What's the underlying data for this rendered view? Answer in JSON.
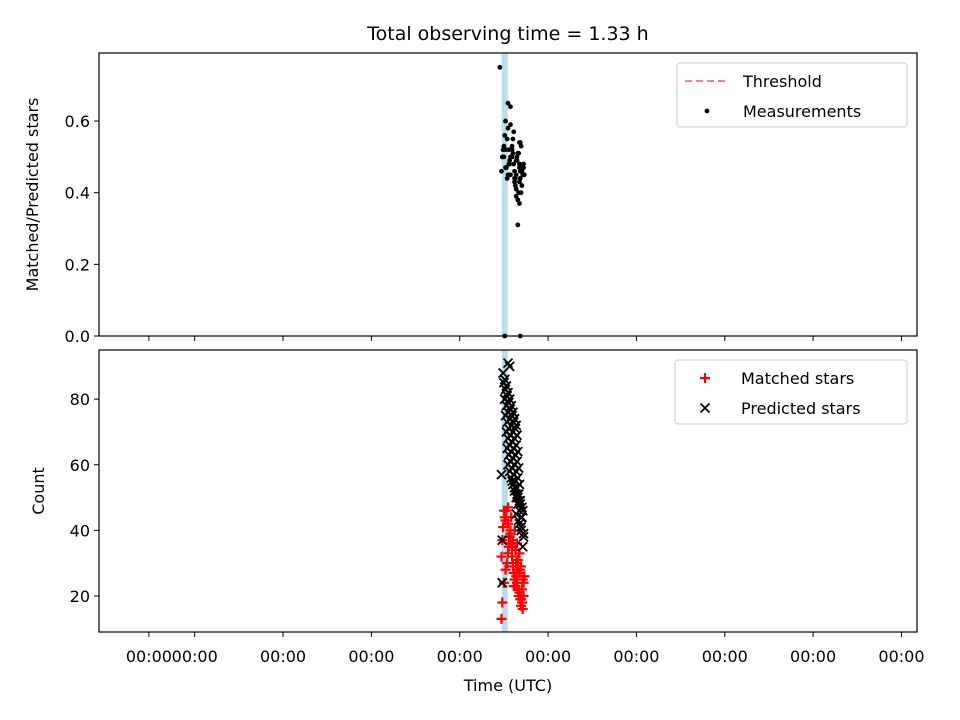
{
  "figure": {
    "title": "Total observing time = 1.33 h",
    "xlabel": "Time (UTC)"
  },
  "chart_data": [
    {
      "type": "scatter",
      "panel": "top",
      "ylabel": "Matched/Predicted stars",
      "xlim": [
        0,
        1
      ],
      "ylim": [
        0,
        0.79
      ],
      "yticks": [
        0.0,
        0.2,
        0.4,
        0.6
      ],
      "ytick_labels": [
        "0.0",
        "0.2",
        "0.4",
        "0.6"
      ],
      "xticks": [
        0.061,
        0.117,
        0.225,
        0.333,
        0.441,
        0.549,
        0.657,
        0.765,
        0.873,
        0.981
      ],
      "xtick_labels": [
        "00:00",
        "00:00",
        "00:00",
        "00:00",
        "00:00",
        "00:00",
        "00:00",
        "00:00",
        "00:00",
        "00:00"
      ],
      "show_xtick_labels": false,
      "grid": false,
      "legend": "top-right",
      "threshold_band": {
        "x": 0.496,
        "color": "#add8e6"
      },
      "series": [
        {
          "name": "Threshold",
          "kind": "dashed-line",
          "color": "#ff7f7f",
          "x": [],
          "y": []
        },
        {
          "name": "Measurements",
          "kind": "dot",
          "color": "#000000",
          "x": [
            0.492,
            0.495,
            0.497,
            0.499,
            0.501,
            0.503,
            0.505,
            0.507,
            0.509,
            0.511,
            0.513,
            0.515,
            0.517,
            0.519,
            0.494,
            0.497,
            0.5,
            0.503,
            0.506,
            0.508,
            0.51,
            0.512,
            0.514,
            0.516,
            0.518,
            0.496,
            0.499,
            0.502,
            0.505,
            0.508,
            0.511,
            0.514,
            0.517,
            0.493,
            0.498,
            0.502,
            0.506,
            0.51,
            0.514,
            0.518,
            0.495,
            0.5,
            0.505,
            0.51,
            0.515,
            0.497,
            0.503,
            0.509,
            0.515,
            0.52,
            0.501,
            0.507,
            0.513,
            0.519,
            0.512,
            0.516,
            0.51,
            0.514,
            0.508,
            0.512,
            0.514,
            0.5,
            0.503,
            0.49,
            0.496,
            0.515
          ],
          "y": [
            0.46,
            0.5,
            0.52,
            0.55,
            0.48,
            0.45,
            0.53,
            0.57,
            0.44,
            0.49,
            0.51,
            0.54,
            0.46,
            0.48,
            0.52,
            0.47,
            0.45,
            0.5,
            0.55,
            0.43,
            0.49,
            0.51,
            0.47,
            0.53,
            0.45,
            0.56,
            0.44,
            0.48,
            0.52,
            0.46,
            0.5,
            0.54,
            0.42,
            0.5,
            0.47,
            0.49,
            0.51,
            0.45,
            0.48,
            0.47,
            0.53,
            0.58,
            0.5,
            0.41,
            0.46,
            0.6,
            0.59,
            0.42,
            0.44,
            0.45,
            0.52,
            0.48,
            0.4,
            0.47,
            0.38,
            0.4,
            0.39,
            0.37,
            0.44,
            0.31,
            0.43,
            0.65,
            0.64,
            0.75,
            0.0,
            0.0
          ]
        }
      ]
    },
    {
      "type": "scatter",
      "panel": "bottom",
      "ylabel": "Count",
      "xlim": [
        0,
        1
      ],
      "ylim": [
        9,
        95
      ],
      "yticks": [
        20,
        40,
        60,
        80
      ],
      "ytick_labels": [
        "20",
        "40",
        "60",
        "80"
      ],
      "xticks": [
        0.061,
        0.117,
        0.225,
        0.333,
        0.441,
        0.549,
        0.657,
        0.765,
        0.873,
        0.981
      ],
      "xtick_labels": [
        "00:00",
        "00:00",
        "00:00",
        "00:00",
        "00:00",
        "00:00",
        "00:00",
        "00:00",
        "00:00",
        "00:00"
      ],
      "show_xtick_labels": true,
      "grid": false,
      "legend": "top-right",
      "threshold_band": {
        "x": 0.496,
        "color": "#add8e6"
      },
      "series": [
        {
          "name": "Matched stars",
          "kind": "plus",
          "color": "#ff0000",
          "x": [
            0.492,
            0.493,
            0.495,
            0.497,
            0.499,
            0.5,
            0.501,
            0.502,
            0.503,
            0.504,
            0.505,
            0.506,
            0.507,
            0.508,
            0.509,
            0.51,
            0.511,
            0.512,
            0.513,
            0.514,
            0.515,
            0.516,
            0.517,
            0.518,
            0.519,
            0.52,
            0.496,
            0.498,
            0.5,
            0.503,
            0.506,
            0.509,
            0.512,
            0.515,
            0.518,
            0.494,
            0.497,
            0.501,
            0.505,
            0.51,
            0.514,
            0.517,
            0.495,
            0.5,
            0.504,
            0.508,
            0.511,
            0.514,
            0.516,
            0.519,
            0.493,
            0.492,
            0.512,
            0.516,
            0.507,
            0.511
          ],
          "y": [
            13,
            18,
            24,
            28,
            30,
            33,
            35,
            38,
            40,
            36,
            32,
            29,
            27,
            25,
            23,
            26,
            24,
            22,
            20,
            21,
            19,
            17,
            18,
            16,
            20,
            26,
            44,
            46,
            42,
            39,
            37,
            34,
            31,
            28,
            25,
            41,
            43,
            38,
            35,
            30,
            27,
            22,
            46,
            47,
            44,
            40,
            36,
            33,
            29,
            24,
            37,
            32,
            29,
            19,
            23,
            28
          ]
        },
        {
          "name": "Predicted stars",
          "kind": "x",
          "color": "#000000",
          "x": [
            0.494,
            0.496,
            0.498,
            0.5,
            0.502,
            0.504,
            0.506,
            0.508,
            0.51,
            0.495,
            0.497,
            0.499,
            0.501,
            0.503,
            0.505,
            0.507,
            0.509,
            0.511,
            0.496,
            0.498,
            0.5,
            0.502,
            0.504,
            0.506,
            0.508,
            0.51,
            0.512,
            0.497,
            0.499,
            0.501,
            0.503,
            0.505,
            0.507,
            0.509,
            0.511,
            0.513,
            0.498,
            0.5,
            0.502,
            0.504,
            0.506,
            0.508,
            0.51,
            0.512,
            0.514,
            0.499,
            0.501,
            0.503,
            0.505,
            0.507,
            0.509,
            0.511,
            0.513,
            0.515,
            0.5,
            0.502,
            0.504,
            0.506,
            0.508,
            0.51,
            0.512,
            0.514,
            0.516,
            0.505,
            0.508,
            0.511,
            0.514,
            0.517,
            0.51,
            0.513,
            0.516,
            0.519,
            0.512,
            0.515,
            0.518,
            0.514,
            0.517,
            0.516,
            0.519,
            0.492,
            0.493,
            0.493,
            0.518,
            0.5,
            0.502
          ],
          "y": [
            88,
            86,
            84,
            82,
            80,
            78,
            76,
            74,
            72,
            85,
            83,
            81,
            79,
            77,
            75,
            73,
            71,
            69,
            80,
            78,
            76,
            74,
            72,
            70,
            68,
            66,
            64,
            75,
            73,
            71,
            69,
            67,
            65,
            63,
            61,
            59,
            70,
            68,
            66,
            64,
            62,
            60,
            58,
            56,
            54,
            65,
            63,
            61,
            59,
            57,
            55,
            53,
            51,
            49,
            60,
            58,
            56,
            54,
            52,
            50,
            48,
            46,
            44,
            55,
            53,
            51,
            49,
            47,
            45,
            43,
            41,
            39,
            50,
            48,
            46,
            42,
            44,
            40,
            38,
            57,
            37,
            24,
            35,
            91,
            90
          ]
        }
      ]
    }
  ]
}
